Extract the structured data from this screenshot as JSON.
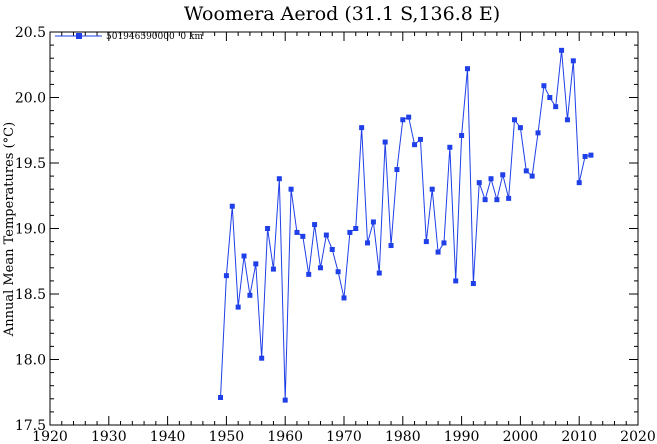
{
  "chart_data": {
    "type": "line",
    "title": "Woomera Aerod (31.1 S,136.8 E)",
    "xlabel": "",
    "ylabel": "Annual Mean Temperatures (°C)",
    "xlim": [
      1920,
      2020
    ],
    "ylim": [
      17.5,
      20.5
    ],
    "xticks": [
      1920,
      1930,
      1940,
      1950,
      1960,
      1970,
      1980,
      1990,
      2000,
      2010,
      2020
    ],
    "yticks": [
      17.5,
      18.0,
      18.5,
      19.0,
      19.5,
      20.0,
      20.5
    ],
    "xtick_labels": [
      "1920",
      "1930",
      "1940",
      "1950",
      "1960",
      "1970",
      "1980",
      "1990",
      "2000",
      "2010",
      "2020"
    ],
    "ytick_labels": [
      "17.5",
      "18.0",
      "18.5",
      "19.0",
      "19.5",
      "20.0",
      "20.5"
    ],
    "grid": false,
    "legend_position": "top-left",
    "series": [
      {
        "name": "501946590000  0 km",
        "color": "#1f3fe8",
        "marker": "square",
        "x": [
          1949,
          1950,
          1951,
          1952,
          1953,
          1954,
          1955,
          1956,
          1957,
          1958,
          1959,
          1960,
          1961,
          1962,
          1963,
          1964,
          1965,
          1966,
          1967,
          1968,
          1969,
          1970,
          1971,
          1972,
          1973,
          1974,
          1975,
          1976,
          1977,
          1978,
          1979,
          1980,
          1981,
          1982,
          1983,
          1984,
          1985,
          1986,
          1987,
          1988,
          1989,
          1990,
          1991,
          1992,
          1993,
          1994,
          1995,
          1996,
          1997,
          1998,
          1999,
          2000,
          2001,
          2002,
          2003,
          2004,
          2005,
          2006,
          2007,
          2008,
          2009,
          2010,
          2011,
          2012
        ],
        "y": [
          17.71,
          18.64,
          19.17,
          18.4,
          18.79,
          18.49,
          18.73,
          18.01,
          19.0,
          18.69,
          19.38,
          17.69,
          19.3,
          18.97,
          18.94,
          18.65,
          19.03,
          18.7,
          18.95,
          18.84,
          18.67,
          18.47,
          18.97,
          19.0,
          19.77,
          18.89,
          19.05,
          18.66,
          19.66,
          18.87,
          19.45,
          19.83,
          19.85,
          19.64,
          19.68,
          18.9,
          19.3,
          18.82,
          18.89,
          19.62,
          18.6,
          19.71,
          20.22,
          18.58,
          19.35,
          19.22,
          19.38,
          19.22,
          19.41,
          19.23,
          19.83,
          19.77,
          19.44,
          19.4,
          19.73,
          20.09,
          20.0,
          19.93,
          20.36,
          19.83,
          20.28,
          19.35,
          19.55,
          19.56
        ]
      }
    ]
  }
}
